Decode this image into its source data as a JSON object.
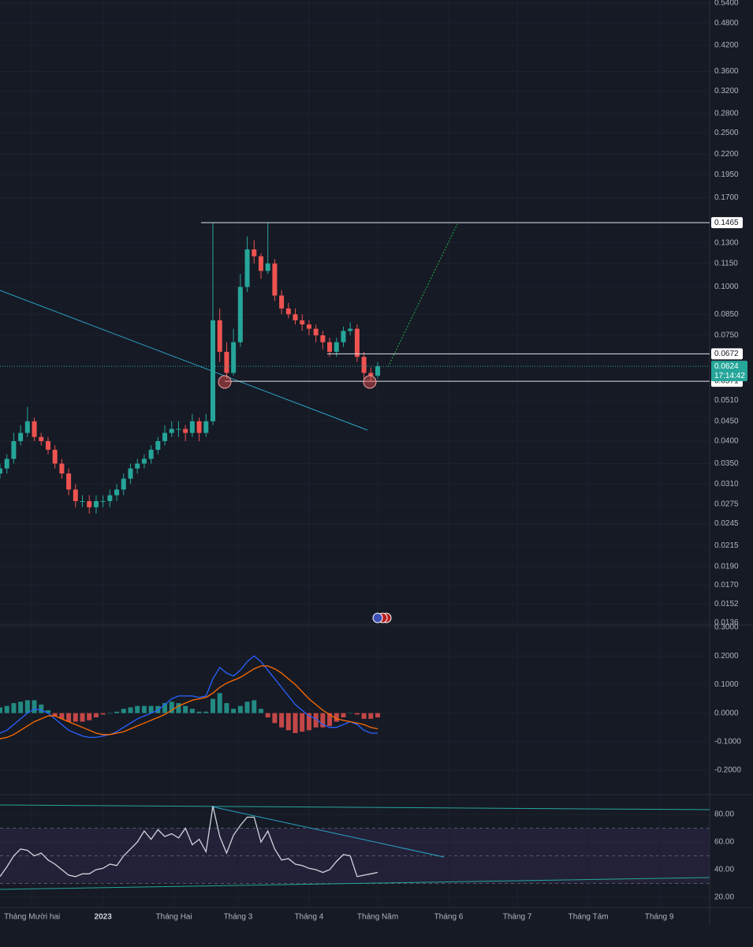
{
  "chart_data": [
    {
      "type": "candlestick",
      "log_scale": true,
      "grid": true,
      "x": [
        0,
        3,
        6,
        9,
        12,
        15,
        18,
        21,
        24,
        27,
        30,
        33,
        36,
        39,
        42,
        45,
        48,
        51,
        54,
        57,
        60,
        63,
        66,
        69,
        72,
        75,
        78,
        81,
        84,
        87,
        90,
        93,
        96,
        99,
        102,
        105,
        108,
        111,
        114,
        117,
        120,
        123,
        126,
        129,
        132,
        135,
        138,
        141,
        144,
        147,
        150,
        153,
        156,
        159,
        162,
        165
      ],
      "open": [
        0.033,
        0.034,
        0.036,
        0.04,
        0.042,
        0.045,
        0.041,
        0.04,
        0.038,
        0.035,
        0.033,
        0.03,
        0.028,
        0.028,
        0.027,
        0.028,
        0.028,
        0.029,
        0.03,
        0.032,
        0.034,
        0.035,
        0.036,
        0.038,
        0.04,
        0.042,
        0.043,
        0.043,
        0.042,
        0.045,
        0.042,
        0.045,
        0.082,
        0.068,
        0.06,
        0.072,
        0.1,
        0.125,
        0.12,
        0.11,
        0.115,
        0.095,
        0.088,
        0.085,
        0.082,
        0.08,
        0.078,
        0.075,
        0.072,
        0.068,
        0.072,
        0.077,
        0.078,
        0.066,
        0.06,
        0.059
      ],
      "high": [
        0.035,
        0.037,
        0.042,
        0.044,
        0.049,
        0.046,
        0.042,
        0.041,
        0.039,
        0.036,
        0.034,
        0.031,
        0.029,
        0.029,
        0.029,
        0.029,
        0.03,
        0.031,
        0.033,
        0.035,
        0.036,
        0.037,
        0.039,
        0.041,
        0.044,
        0.045,
        0.045,
        0.044,
        0.047,
        0.046,
        0.047,
        0.1465,
        0.088,
        0.072,
        0.078,
        0.108,
        0.135,
        0.132,
        0.122,
        0.1465,
        0.118,
        0.098,
        0.091,
        0.088,
        0.085,
        0.082,
        0.08,
        0.077,
        0.074,
        0.074,
        0.079,
        0.081,
        0.08,
        0.068,
        0.062,
        0.064
      ],
      "low": [
        0.032,
        0.033,
        0.035,
        0.039,
        0.041,
        0.04,
        0.039,
        0.037,
        0.034,
        0.032,
        0.029,
        0.027,
        0.027,
        0.026,
        0.026,
        0.027,
        0.027,
        0.028,
        0.029,
        0.031,
        0.033,
        0.034,
        0.035,
        0.037,
        0.039,
        0.041,
        0.041,
        0.04,
        0.041,
        0.04,
        0.041,
        0.044,
        0.064,
        0.058,
        0.059,
        0.07,
        0.097,
        0.115,
        0.105,
        0.108,
        0.092,
        0.085,
        0.083,
        0.08,
        0.077,
        0.075,
        0.072,
        0.069,
        0.066,
        0.066,
        0.07,
        0.075,
        0.064,
        0.058,
        0.057,
        0.058
      ],
      "close": [
        0.034,
        0.036,
        0.04,
        0.042,
        0.045,
        0.041,
        0.04,
        0.038,
        0.035,
        0.033,
        0.03,
        0.028,
        0.028,
        0.027,
        0.028,
        0.028,
        0.029,
        0.03,
        0.032,
        0.034,
        0.035,
        0.036,
        0.038,
        0.04,
        0.042,
        0.043,
        0.043,
        0.042,
        0.045,
        0.042,
        0.045,
        0.082,
        0.068,
        0.06,
        0.072,
        0.1,
        0.125,
        0.12,
        0.11,
        0.115,
        0.095,
        0.088,
        0.085,
        0.082,
        0.08,
        0.078,
        0.075,
        0.072,
        0.068,
        0.072,
        0.077,
        0.078,
        0.066,
        0.06,
        0.059,
        0.0624
      ],
      "up_color": "#26a69a",
      "down_color": "#ef5350",
      "xlim": [
        0,
        310
      ],
      "ylim": [
        0.0136,
        0.54
      ],
      "yticks": [
        {
          "value": 0.54,
          "label": "0.5400"
        },
        {
          "value": 0.48,
          "label": "0.4800"
        },
        {
          "value": 0.42,
          "label": "0.4200"
        },
        {
          "value": 0.36,
          "label": "0.3600"
        },
        {
          "value": 0.32,
          "label": "0.3200"
        },
        {
          "value": 0.28,
          "label": "0.2800"
        },
        {
          "value": 0.25,
          "label": "0.2500"
        },
        {
          "value": 0.22,
          "label": "0.2200"
        },
        {
          "value": 0.195,
          "label": "0.1950"
        },
        {
          "value": 0.17,
          "label": "0.1700"
        },
        {
          "value": 0.13,
          "label": "0.1300"
        },
        {
          "value": 0.115,
          "label": "0.1150"
        },
        {
          "value": 0.1,
          "label": "0.1000"
        },
        {
          "value": 0.085,
          "label": "0.0850"
        },
        {
          "value": 0.075,
          "label": "0.0750"
        },
        {
          "value": 0.051,
          "label": "0.0510"
        },
        {
          "value": 0.045,
          "label": "0.0450"
        },
        {
          "value": 0.04,
          "label": "0.0400"
        },
        {
          "value": 0.035,
          "label": "0.0350"
        },
        {
          "value": 0.031,
          "label": "0.0310"
        },
        {
          "value": 0.0275,
          "label": "0.0275"
        },
        {
          "value": 0.0245,
          "label": "0.0245"
        },
        {
          "value": 0.0215,
          "label": "0.0215"
        },
        {
          "value": 0.019,
          "label": "0.0190"
        },
        {
          "value": 0.017,
          "label": "0.0170"
        },
        {
          "value": 0.0152,
          "label": "0.0152"
        },
        {
          "value": 0.0136,
          "label": "0.0136"
        }
      ],
      "levels": [
        {
          "value": 0.1465,
          "label": "0.1465"
        },
        {
          "value": 0.0672,
          "label": "0.0672"
        },
        {
          "value": 0.0571,
          "label": "0.0571"
        }
      ],
      "last_price": {
        "value": 0.0624,
        "label": "0.0624"
      },
      "countdown": "17:14:42"
    },
    {
      "type": "macd",
      "grid": true,
      "x": [
        0,
        3,
        6,
        9,
        12,
        15,
        18,
        21,
        24,
        27,
        30,
        33,
        36,
        39,
        42,
        45,
        48,
        51,
        54,
        57,
        60,
        63,
        66,
        69,
        72,
        75,
        78,
        81,
        84,
        87,
        90,
        93,
        96,
        99,
        102,
        105,
        108,
        111,
        114,
        117,
        120,
        123,
        126,
        129,
        132,
        135,
        138,
        141,
        144,
        147,
        150,
        153,
        156,
        159,
        162,
        165
      ],
      "histogram": [
        0.02,
        0.025,
        0.035,
        0.04,
        0.045,
        0.045,
        0.03,
        0.01,
        -0.01,
        -0.02,
        -0.03,
        -0.03,
        -0.03,
        -0.025,
        -0.015,
        -0.005,
        0.0,
        0.005,
        0.015,
        0.02,
        0.025,
        0.025,
        0.025,
        0.025,
        0.035,
        0.04,
        0.035,
        0.025,
        0.015,
        0.005,
        0.005,
        0.05,
        0.07,
        0.035,
        0.015,
        0.025,
        0.04,
        0.045,
        0.015,
        -0.015,
        -0.035,
        -0.05,
        -0.06,
        -0.07,
        -0.065,
        -0.06,
        -0.05,
        -0.05,
        -0.045,
        -0.03,
        -0.015,
        0.0,
        -0.005,
        -0.02,
        -0.02,
        -0.015
      ],
      "up_color": "#26a69a",
      "down_color": "#ef5350",
      "series": [
        {
          "color": "#2962ff",
          "values": [
            -0.07,
            -0.06,
            -0.04,
            -0.02,
            0.0,
            0.015,
            0.01,
            0.0,
            -0.02,
            -0.04,
            -0.06,
            -0.07,
            -0.08,
            -0.085,
            -0.085,
            -0.08,
            -0.075,
            -0.065,
            -0.05,
            -0.035,
            -0.02,
            -0.01,
            0.0,
            0.01,
            0.03,
            0.05,
            0.06,
            0.06,
            0.06,
            0.055,
            0.06,
            0.12,
            0.16,
            0.14,
            0.13,
            0.15,
            0.18,
            0.2,
            0.18,
            0.15,
            0.12,
            0.09,
            0.06,
            0.03,
            0.01,
            -0.01,
            -0.02,
            -0.04,
            -0.05,
            -0.05,
            -0.04,
            -0.03,
            -0.04,
            -0.06,
            -0.07,
            -0.07
          ]
        },
        {
          "color": "#ff6d00",
          "values": [
            -0.09,
            -0.085,
            -0.075,
            -0.06,
            -0.045,
            -0.03,
            -0.02,
            -0.01,
            -0.01,
            -0.02,
            -0.03,
            -0.04,
            -0.05,
            -0.06,
            -0.07,
            -0.075,
            -0.075,
            -0.07,
            -0.065,
            -0.055,
            -0.045,
            -0.035,
            -0.025,
            -0.015,
            -0.005,
            0.01,
            0.025,
            0.035,
            0.045,
            0.05,
            0.055,
            0.07,
            0.09,
            0.105,
            0.115,
            0.125,
            0.14,
            0.155,
            0.165,
            0.165,
            0.155,
            0.14,
            0.12,
            0.1,
            0.075,
            0.05,
            0.03,
            0.01,
            -0.005,
            -0.02,
            -0.025,
            -0.03,
            -0.035,
            -0.04,
            -0.05,
            -0.055
          ]
        }
      ],
      "xlim": [
        0,
        310
      ],
      "ylim": [
        -0.28,
        0.3
      ],
      "yticks": [
        {
          "value": 0.3,
          "label": "0.3000"
        },
        {
          "value": 0.2,
          "label": "0.2000"
        },
        {
          "value": 0.1,
          "label": "0.1000"
        },
        {
          "value": 0,
          "label": "0.0000"
        },
        {
          "value": -0.1,
          "label": "-0.1000"
        },
        {
          "value": -0.2,
          "label": "-0.2000"
        }
      ]
    },
    {
      "type": "rsi",
      "grid": true,
      "x": [
        0,
        3,
        6,
        9,
        12,
        15,
        18,
        21,
        24,
        27,
        30,
        33,
        36,
        39,
        42,
        45,
        48,
        51,
        54,
        57,
        60,
        63,
        66,
        69,
        72,
        75,
        78,
        81,
        84,
        87,
        90,
        93,
        96,
        99,
        102,
        105,
        108,
        111,
        114,
        117,
        120,
        123,
        126,
        129,
        132,
        135,
        138,
        141,
        144,
        147,
        150,
        153,
        156,
        159,
        162,
        165
      ],
      "values": [
        35,
        42,
        50,
        55,
        54,
        50,
        52,
        47,
        44,
        40,
        36,
        35,
        37,
        37,
        40,
        41,
        44,
        43,
        50,
        55,
        60,
        68,
        62,
        69,
        64,
        66,
        63,
        70,
        58,
        62,
        53,
        86,
        64,
        52,
        65,
        72,
        78,
        78,
        60,
        68,
        55,
        47,
        48,
        44,
        43,
        41,
        40,
        38,
        40,
        46,
        51,
        50,
        35,
        36,
        37,
        38
      ],
      "color": "#d1d4dc",
      "levels": [
        30,
        50,
        70
      ],
      "xlim": [
        0,
        310
      ],
      "ylim": [
        12.6,
        92.6
      ],
      "yticks": [
        {
          "value": 80,
          "label": "80.00"
        },
        {
          "value": 60,
          "label": "60.00"
        },
        {
          "value": 40,
          "label": "40.00"
        },
        {
          "value": 20,
          "label": "20.00"
        }
      ],
      "xticks": [
        {
          "value": 14,
          "label": "Tháng Mười hai"
        },
        {
          "value": 45,
          "label": "2023"
        },
        {
          "value": 76,
          "label": "Tháng Hai"
        },
        {
          "value": 104,
          "label": "Tháng 3"
        },
        {
          "value": 135,
          "label": "Tháng 4"
        },
        {
          "value": 165,
          "label": "Tháng Năm"
        },
        {
          "value": 196,
          "label": "Tháng 6"
        },
        {
          "value": 226,
          "label": "Tháng 7"
        },
        {
          "value": 257,
          "label": "Tháng Tám"
        },
        {
          "value": 288,
          "label": "Tháng 9"
        }
      ]
    }
  ]
}
